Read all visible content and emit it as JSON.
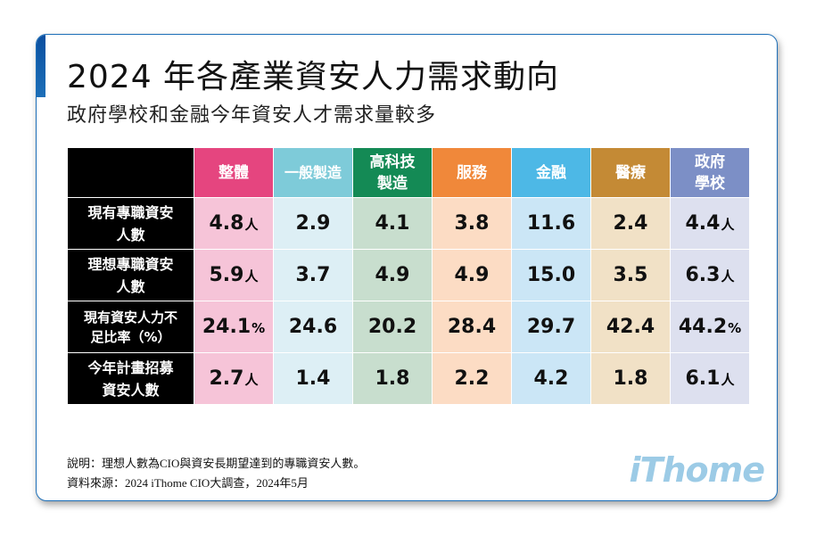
{
  "title": "2024 年各產業資安人力需求動向",
  "subtitle": "政府學校和金融今年資安人才需求量較多",
  "chart_data": {
    "type": "table",
    "columns": [
      {
        "label": "整體",
        "header_color": "#e5457f",
        "cell_color": "#f6c4d8"
      },
      {
        "label": "一般製造",
        "header_color": "#7ecbd9",
        "cell_color": "#ddeff5"
      },
      {
        "label": "高科技製造",
        "header_color": "#148a55",
        "cell_color": "#c8dece"
      },
      {
        "label": "服務",
        "header_color": "#f0883a",
        "cell_color": "#fcdcc4"
      },
      {
        "label": "金融",
        "header_color": "#4db8e6",
        "cell_color": "#cbe6f6"
      },
      {
        "label": "醫療",
        "header_color": "#c48a35",
        "cell_color": "#f1e1c6"
      },
      {
        "label": "政府學校",
        "header_color": "#7c8fc6",
        "cell_color": "#dde0ef"
      }
    ],
    "rows": [
      {
        "label": "現有專職資安人數",
        "cells": [
          {
            "v": "4.8",
            "u": "人"
          },
          {
            "v": "2.9",
            "u": ""
          },
          {
            "v": "4.1",
            "u": ""
          },
          {
            "v": "3.8",
            "u": ""
          },
          {
            "v": "11.6",
            "u": ""
          },
          {
            "v": "2.4",
            "u": ""
          },
          {
            "v": "4.4",
            "u": "人"
          }
        ]
      },
      {
        "label": "理想專職資安人數",
        "cells": [
          {
            "v": "5.9",
            "u": "人"
          },
          {
            "v": "3.7",
            "u": ""
          },
          {
            "v": "4.9",
            "u": ""
          },
          {
            "v": "4.9",
            "u": ""
          },
          {
            "v": "15.0",
            "u": ""
          },
          {
            "v": "3.5",
            "u": ""
          },
          {
            "v": "6.3",
            "u": "人"
          }
        ]
      },
      {
        "label": "現有資安人力不足比率（%）",
        "cells": [
          {
            "v": "24.1",
            "u": "%"
          },
          {
            "v": "24.6",
            "u": ""
          },
          {
            "v": "20.2",
            "u": ""
          },
          {
            "v": "28.4",
            "u": ""
          },
          {
            "v": "29.7",
            "u": ""
          },
          {
            "v": "42.4",
            "u": ""
          },
          {
            "v": "44.2",
            "u": "%"
          }
        ]
      },
      {
        "label": "今年計畫招募資安人數",
        "cells": [
          {
            "v": "2.7",
            "u": "人"
          },
          {
            "v": "1.4",
            "u": ""
          },
          {
            "v": "1.8",
            "u": ""
          },
          {
            "v": "2.2",
            "u": ""
          },
          {
            "v": "4.2",
            "u": ""
          },
          {
            "v": "1.8",
            "u": ""
          },
          {
            "v": "6.1",
            "u": "人"
          }
        ]
      }
    ]
  },
  "notes": {
    "note": "說明：理想人數為CIO與資安長期望達到的專職資安人數。",
    "source": "資料來源：2024 iThome CIO大調查，2024年5月"
  },
  "logo": "iThome"
}
